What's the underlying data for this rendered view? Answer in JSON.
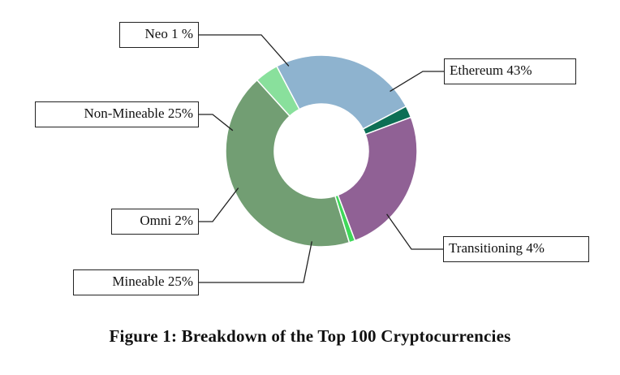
{
  "chart_data": {
    "type": "pie",
    "variant": "donut",
    "title": "Figure 1: Breakdown of the Top 100 Cryptocurrencies",
    "slices": [
      {
        "name": "Ethereum",
        "value": 43,
        "label": "Ethereum 43%",
        "color": "#729e73"
      },
      {
        "name": "Transitioning",
        "value": 4,
        "label": "Transitioning 4%",
        "color": "#89e09c"
      },
      {
        "name": "Mineable",
        "value": 25,
        "label": "Mineable 25%",
        "color": "#8eb3cf"
      },
      {
        "name": "Omni",
        "value": 2,
        "label": "Omni 2%",
        "color": "#0d6f55"
      },
      {
        "name": "Non-Mineable",
        "value": 25,
        "label": "Non-Mineable 25%",
        "color": "#906195"
      },
      {
        "name": "Neo",
        "value": 1,
        "label": "Neo 1 %",
        "color": "#3fd85a"
      }
    ]
  }
}
